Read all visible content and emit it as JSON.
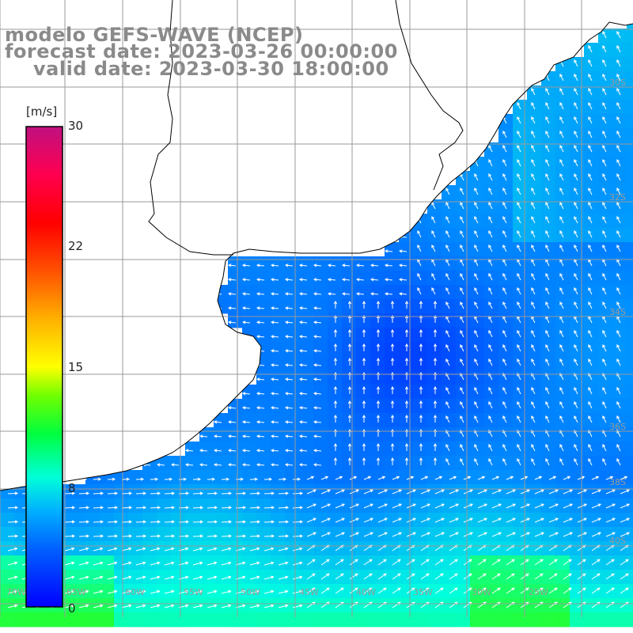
{
  "map": {
    "title_lines": [
      "modelo GEFS-WAVE (NCEP)",
      "forecast date: 2023-03-26 00:00:00",
      "valid date: 2023-03-30 18:00:00"
    ],
    "colorbar": {
      "unit": "[m/s]",
      "min": 0,
      "max": 30,
      "ticks": [
        {
          "value": 30,
          "label": "30"
        },
        {
          "value": 22,
          "label": "22"
        },
        {
          "value": 15,
          "label": "15"
        },
        {
          "value": 8,
          "label": "8"
        },
        {
          "value": 0,
          "label": "0"
        }
      ],
      "colors": [
        "#0000ff",
        "#0060ff",
        "#00c0ff",
        "#00ffd0",
        "#00ff40",
        "#60ff00",
        "#d0ff00",
        "#ffff00",
        "#ffc000",
        "#ff8000",
        "#ff3000",
        "#ff0000",
        "#ff0060",
        "#d0107a",
        "#c01080"
      ]
    },
    "lat_labels": [
      "30S",
      "32S",
      "34S",
      "36S",
      "38S",
      "40S"
    ],
    "lon_labels": [
      "70W",
      "65W",
      "60W",
      "55W",
      "50W",
      "45W",
      "40W",
      "35W",
      "30W",
      "25W"
    ],
    "ocean_color_scale": "wind speed [m/s]",
    "land_color": "#ffffff",
    "coastline_color": "#000000",
    "grid_color": "#9a9a9a"
  }
}
